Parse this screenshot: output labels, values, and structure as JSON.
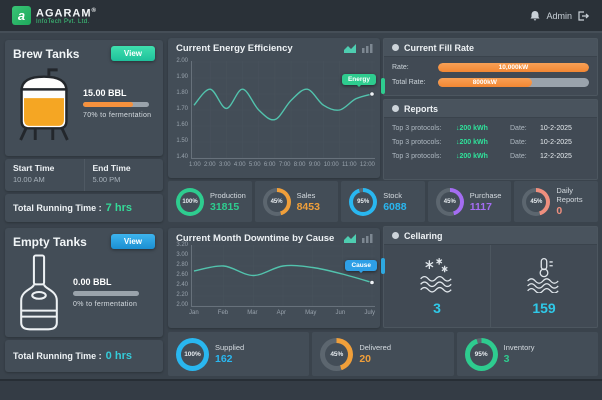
{
  "header": {
    "brand": "AGARAM",
    "brand_mark": "®",
    "brand_sub": "InfoTech Pvt. Ltd.",
    "admin": "Admin"
  },
  "brew_tanks": {
    "title": "Brew Tanks",
    "view": "View",
    "volume": "15.00 BBL",
    "fill_pct": 75,
    "fermentation": "70% to fermentation",
    "start_label": "Start Time",
    "start_value": "10.00 AM",
    "end_label": "End Time",
    "end_value": "5.00 PM",
    "running_label": "Total Running Time :",
    "running_value": "7 hrs",
    "running_color": "#35d998",
    "accent": "#2ecc8f"
  },
  "empty_tanks": {
    "title": "Empty Tanks",
    "view": "View",
    "volume": "0.00 BBL",
    "fill_pct": 0,
    "fermentation": "0% to fermentation",
    "running_label": "Total Running Time :",
    "running_value": "0 hrs",
    "running_color": "#35cbd8",
    "accent": "#2da8e0"
  },
  "fill_rate": {
    "title": "Current Fill Rate",
    "rate_label": "Rate:",
    "rate_value": "10,000kW",
    "rate_pct": 100,
    "total_label": "Total Rate:",
    "total_value": "8000kW",
    "total_pct": 62,
    "bar_color": "#f28733"
  },
  "reports": {
    "title": "Reports",
    "rows": [
      {
        "protocol_label": "Top 3 protocols:",
        "value": "↓200 kWh",
        "date_label": "Date:",
        "date": "10-2-2025"
      },
      {
        "protocol_label": "Top 3 protocols:",
        "value": "↓200 kWh",
        "date_label": "Date:",
        "date": "10-2-2025"
      },
      {
        "protocol_label": "Top 3 protocols:",
        "value": "↓200 kWh",
        "date_label": "Date:",
        "date": "12-2-2025"
      }
    ]
  },
  "cellaring": {
    "title": "Cellaring",
    "cold_value": "3",
    "temp_value": "159",
    "value_color": "#2fc9e8"
  },
  "stats_top": [
    {
      "label": "Production",
      "value": "31815",
      "pct": 100,
      "pct_label": "100%",
      "color": "#2ecc8f"
    },
    {
      "label": "Sales",
      "value": "8453",
      "pct": 45,
      "pct_label": "45%",
      "color": "#f09f3a"
    },
    {
      "label": "Stock",
      "value": "6088",
      "pct": 95,
      "pct_label": "95%",
      "color": "#29b7f0"
    },
    {
      "label": "Purchase",
      "value": "1117",
      "pct": 45,
      "pct_label": "45%",
      "color": "#a46df2"
    },
    {
      "label": "Daily Reports",
      "value": "0",
      "pct": 45,
      "pct_label": "45%",
      "color": "#ef8f7e"
    }
  ],
  "stats_bottom": [
    {
      "label": "Supplied",
      "value": "162",
      "pct": 100,
      "pct_label": "100%",
      "color": "#29b7f0"
    },
    {
      "label": "Delivered",
      "value": "20",
      "pct": 45,
      "pct_label": "45%",
      "color": "#f09f3a"
    },
    {
      "label": "Inventory",
      "value": "3",
      "pct": 95,
      "pct_label": "95%",
      "color": "#2ecc8f"
    }
  ],
  "chart_data": [
    {
      "type": "line",
      "title": "Current Energy Efficiency",
      "x": [
        "1:00",
        "2:00",
        "3:00",
        "4:00",
        "5:00",
        "6:00",
        "7:00",
        "8:00",
        "9:00",
        "10:00",
        "11:00",
        "12:00"
      ],
      "yticks": [
        "2.00",
        "1.90",
        "1.80",
        "1.70",
        "1.60",
        "1.50",
        "1.40"
      ],
      "ylim": [
        1.4,
        2.0
      ],
      "grid": true,
      "legend": "none",
      "tooltip": "Energy",
      "tooltip_color": "#2ecc8f",
      "series": [
        {
          "name": "Energy",
          "color": "#52c3ad",
          "values": [
            1.73,
            1.83,
            1.71,
            1.83,
            1.7,
            1.64,
            1.76,
            1.83,
            1.73,
            1.7,
            1.77,
            1.8
          ]
        }
      ]
    },
    {
      "type": "line",
      "title": "Current Month Downtime by Cause",
      "x": [
        "Jan",
        "Feb",
        "Mar",
        "Apr",
        "May",
        "Jun",
        "July"
      ],
      "yticks": [
        "3.20",
        "3.00",
        "2.80",
        "2.60",
        "2.40",
        "2.20",
        "2.00"
      ],
      "ylim": [
        2.0,
        3.2
      ],
      "grid": true,
      "legend": "none",
      "tooltip": "Cause",
      "tooltip_color": "#2e9fe6",
      "series": [
        {
          "name": "Cause",
          "color": "#52c3ad",
          "values": [
            2.7,
            2.8,
            2.61,
            2.8,
            2.77,
            2.64,
            2.47
          ]
        }
      ]
    }
  ]
}
